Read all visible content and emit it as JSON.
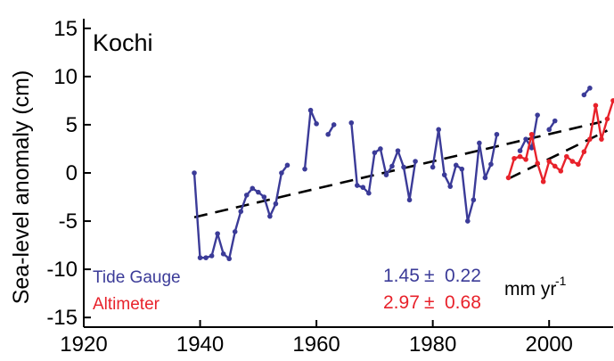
{
  "chart_data": {
    "type": "line",
    "title": "Kochi",
    "xlabel": "",
    "ylabel": "Sea-level anomaly (cm)",
    "xlim": [
      1920,
      2011
    ],
    "ylim": [
      -16,
      16
    ],
    "xticks": [
      1920,
      1940,
      1960,
      1980,
      2000
    ],
    "yticks": [
      15,
      10,
      5,
      0,
      -5,
      -10,
      -15
    ],
    "grid": false,
    "legend_placement": "bottom-left",
    "series": [
      {
        "name": "Tide Gauge",
        "color": "#3b3b98",
        "segments": [
          [
            [
              1939,
              0
            ],
            [
              1940,
              -8.8
            ],
            [
              1941,
              -8.8
            ],
            [
              1942,
              -8.6
            ],
            [
              1943,
              -6.3
            ],
            [
              1944,
              -8.4
            ],
            [
              1945,
              -8.9
            ],
            [
              1946,
              -6.1
            ],
            [
              1947,
              -4.0
            ],
            [
              1948,
              -2.3
            ],
            [
              1949,
              -1.6
            ],
            [
              1950,
              -2.0
            ],
            [
              1951,
              -2.5
            ],
            [
              1952,
              -4.5
            ],
            [
              1953,
              -3.2
            ],
            [
              1954,
              0.0
            ],
            [
              1955,
              0.8
            ]
          ],
          [
            [
              1958,
              0.4
            ],
            [
              1959,
              6.5
            ],
            [
              1960,
              5.1
            ]
          ],
          [
            [
              1962,
              4.0
            ],
            [
              1963,
              5.0
            ]
          ],
          [
            [
              1966,
              5.2
            ],
            [
              1967,
              -1.3
            ],
            [
              1968,
              -1.5
            ],
            [
              1969,
              -2.1
            ],
            [
              1970,
              2.1
            ],
            [
              1971,
              2.5
            ],
            [
              1972,
              -0.2
            ],
            [
              1973,
              0.7
            ],
            [
              1974,
              2.3
            ],
            [
              1975,
              0.6
            ],
            [
              1976,
              -2.8
            ],
            [
              1977,
              1.2
            ]
          ],
          [
            [
              1980,
              0.6
            ],
            [
              1981,
              4.5
            ],
            [
              1982,
              -0.2
            ],
            [
              1983,
              -1.4
            ],
            [
              1984,
              0.8
            ],
            [
              1985,
              0.4
            ],
            [
              1986,
              -5.0
            ],
            [
              1987,
              -2.8
            ],
            [
              1988,
              3.1
            ],
            [
              1989,
              -0.5
            ],
            [
              1990,
              0.9
            ],
            [
              1991,
              4.0
            ]
          ],
          [
            [
              1995,
              2.3
            ],
            [
              1996,
              3.5
            ],
            [
              1997,
              2.6
            ],
            [
              1998,
              6.0
            ]
          ],
          [
            [
              2000,
              4.5
            ],
            [
              2001,
              5.4
            ]
          ],
          [
            [
              2006,
              8.1
            ],
            [
              2007,
              8.8
            ]
          ]
        ]
      },
      {
        "name": "Altimeter",
        "color": "#e8222b",
        "segments": [
          [
            [
              1993,
              -0.5
            ],
            [
              1994,
              1.5
            ],
            [
              1995,
              1.7
            ],
            [
              1996,
              1.4
            ],
            [
              1997,
              4.0
            ],
            [
              1998,
              1.0
            ],
            [
              1999,
              -0.9
            ],
            [
              2000,
              1.2
            ],
            [
              2001,
              0.7
            ],
            [
              2002,
              0.2
            ],
            [
              2003,
              1.7
            ],
            [
              2004,
              1.2
            ],
            [
              2005,
              0.9
            ],
            [
              2006,
              2.2
            ],
            [
              2007,
              3.5
            ],
            [
              2008,
              7.0
            ],
            [
              2009,
              3.5
            ],
            [
              2010,
              5.6
            ],
            [
              2011,
              7.5
            ]
          ]
        ]
      }
    ],
    "trends": [
      {
        "name": "Tide Gauge trend",
        "x": [
          1939,
          2009
        ],
        "y": [
          -4.6,
          5.3
        ],
        "dash": true
      },
      {
        "name": "Altimeter trend",
        "x": [
          1993,
          2010
        ],
        "y": [
          -0.6,
          4.4
        ],
        "dash": true
      }
    ],
    "legend": [
      {
        "label": "Tide Gauge",
        "color": "#3b3b98"
      },
      {
        "label": "Altimeter",
        "color": "#e8222b"
      }
    ],
    "rates": [
      {
        "value": "1.45",
        "pm": "±",
        "err": "0.22",
        "color": "#3b3b98"
      },
      {
        "value": "2.97",
        "pm": "±",
        "err": "0.68",
        "color": "#e8222b"
      }
    ],
    "unit_text": "mm yr",
    "unit_sup": "-1"
  }
}
